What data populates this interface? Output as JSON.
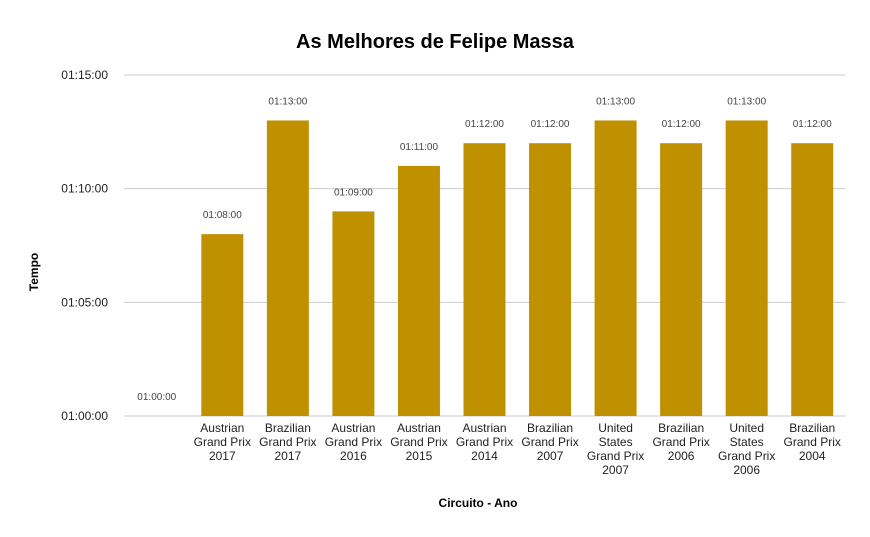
{
  "chart_data": {
    "type": "bar",
    "title": "As Melhores de Felipe Massa",
    "xlabel": "Circuito - Ano",
    "ylabel": "Tempo",
    "yticks": [
      "01:00:00",
      "01:05:00",
      "01:10:00",
      "01:15:00"
    ],
    "ylim_minutes": [
      60,
      75
    ],
    "categories": [
      [],
      [
        "Austrian",
        "Grand Prix",
        "2017"
      ],
      [
        "Brazilian",
        "Grand Prix",
        "2017"
      ],
      [
        "Austrian",
        "Grand Prix",
        "2016"
      ],
      [
        "Austrian",
        "Grand Prix",
        "2015"
      ],
      [
        "Austrian",
        "Grand Prix",
        "2014"
      ],
      [
        "Brazilian",
        "Grand Prix",
        "2007"
      ],
      [
        "United",
        "States",
        "Grand Prix",
        "2007"
      ],
      [
        "Brazilian",
        "Grand Prix",
        "2006"
      ],
      [
        "United",
        "States",
        "Grand Prix",
        "2006"
      ],
      [
        "Brazilian",
        "Grand Prix",
        "2004"
      ]
    ],
    "values_minutes": [
      60,
      68,
      73,
      69,
      71,
      72,
      72,
      73,
      72,
      73,
      72
    ],
    "data_labels": [
      "01:00:00",
      "01:08:00",
      "01:13:00",
      "01:09:00",
      "01:11:00",
      "01:12:00",
      "01:12:00",
      "01:13:00",
      "01:12:00",
      "01:13:00",
      "01:12:00"
    ],
    "bar_color": "#bf9000",
    "grid": true,
    "legend": "none"
  }
}
